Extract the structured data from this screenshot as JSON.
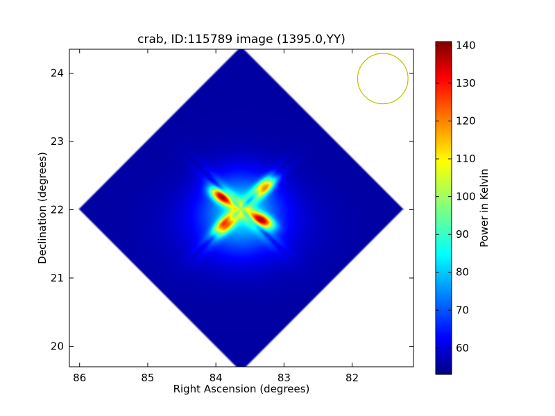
{
  "chart_data": {
    "type": "heatmap",
    "title": "crab, ID:115789 image (1395.0,YY)",
    "xlabel": "Right Ascension (degrees)",
    "ylabel": "Declination (degrees)",
    "xlim": [
      86.15,
      81.1
    ],
    "ylim": [
      19.7,
      24.35
    ],
    "x_ticks": [
      86,
      85,
      84,
      83,
      82
    ],
    "y_ticks": [
      20,
      21,
      22,
      23,
      24
    ],
    "colorbar": {
      "label": "Power in Kelvin",
      "range": [
        53,
        141
      ],
      "ticks": [
        60,
        70,
        80,
        90,
        100,
        110,
        120,
        130,
        140
      ],
      "colormap": "jet"
    },
    "image_center": {
      "ra": 83.63,
      "dec": 22.01
    },
    "image_half_extent_deg": 2.4,
    "background_level": 56,
    "hot_lobes": [
      {
        "ra": 83.92,
        "dec": 22.19,
        "level": 134
      },
      {
        "ra": 83.32,
        "dec": 21.85,
        "level": 134
      },
      {
        "ra": 83.28,
        "dec": 22.34,
        "level": 128
      },
      {
        "ra": 83.87,
        "dec": 21.78,
        "level": 128
      }
    ],
    "beam_circle": {
      "ra": 81.55,
      "dec": 23.92,
      "radius_deg": 0.37,
      "color": "#bfbf00"
    },
    "colors": {
      "axis": "#000000",
      "beam": "#bfbf00"
    }
  }
}
